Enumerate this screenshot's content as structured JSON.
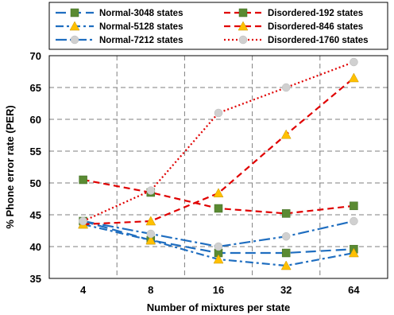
{
  "chart_data": {
    "type": "line",
    "title": "",
    "xlabel": "Number of mixtures per state",
    "ylabel": "% Phone error rate (PER)",
    "categories": [
      "4",
      "8",
      "16",
      "32",
      "64"
    ],
    "ylim": [
      35,
      70
    ],
    "yticks": [
      35,
      40,
      45,
      50,
      55,
      60,
      65,
      70
    ],
    "grid": true,
    "legend": "top",
    "series": [
      {
        "name": "Normal-3048 states",
        "values": [
          44.0,
          41.0,
          39.0,
          39.0,
          39.6
        ],
        "color": "#1f6ec0",
        "dash": "long-dash",
        "marker": "square"
      },
      {
        "name": "Normal-5128 states",
        "values": [
          43.5,
          41.0,
          38.0,
          37.0,
          39.0
        ],
        "color": "#1f6ec0",
        "dash": "dash-dot",
        "marker": "triangle"
      },
      {
        "name": "Normal-7212 states",
        "values": [
          44.0,
          42.0,
          40.0,
          41.6,
          44.0
        ],
        "color": "#1f6ec0",
        "dash": "long-dash-dot",
        "marker": "circle"
      },
      {
        "name": "Disordered-192 states",
        "values": [
          50.5,
          48.5,
          46.0,
          45.2,
          46.4
        ],
        "color": "#e00000",
        "dash": "dash",
        "marker": "square"
      },
      {
        "name": "Disordered-846 states",
        "values": [
          43.5,
          44.0,
          48.4,
          57.6,
          66.5
        ],
        "color": "#e00000",
        "dash": "dash",
        "marker": "triangle"
      },
      {
        "name": "Disordered-1760 states",
        "values": [
          44.0,
          48.8,
          61.0,
          65.0,
          69.0
        ],
        "color": "#e00000",
        "dash": "dot",
        "marker": "circle"
      }
    ],
    "marker_colors": {
      "square": "#5a8a32",
      "triangle": "#ffc000",
      "circle": "#d0d0d0"
    }
  }
}
